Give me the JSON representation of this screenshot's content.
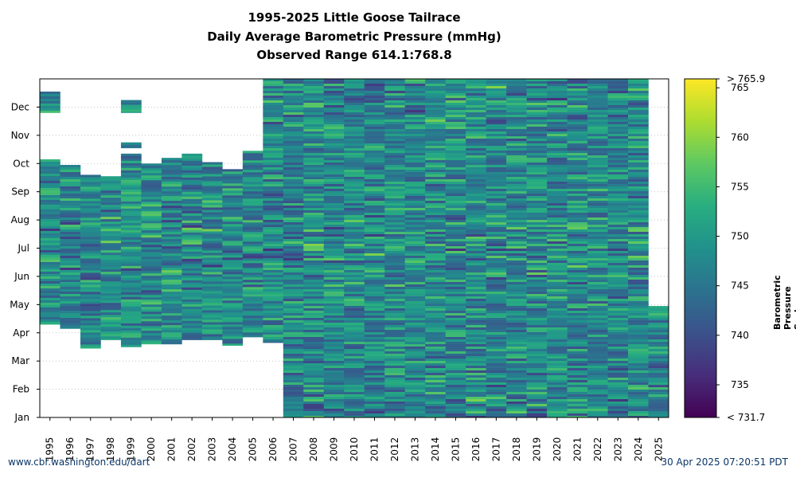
{
  "chart_data": {
    "type": "heatmap",
    "title": "1995-2025 Little Goose Tailrace",
    "subtitle_lines": [
      "Daily Average Barometric Pressure (mmHg)",
      "Observed Range 614.1:768.8"
    ],
    "x_categories": [
      "1995",
      "1996",
      "1997",
      "1998",
      "1999",
      "2000",
      "2001",
      "2002",
      "2003",
      "2004",
      "2005",
      "2006",
      "2007",
      "2008",
      "2009",
      "2010",
      "2011",
      "2012",
      "2013",
      "2014",
      "2015",
      "2016",
      "2017",
      "2018",
      "2019",
      "2020",
      "2021",
      "2022",
      "2023",
      "2024",
      "2025"
    ],
    "y_ticks": [
      "Jan",
      "Feb",
      "Mar",
      "Apr",
      "May",
      "Jun",
      "Jul",
      "Aug",
      "Sep",
      "Oct",
      "Nov",
      "Dec"
    ],
    "grid": true,
    "colorbar": {
      "label": "Barometric Pressure Scale (mmHg)",
      "min": 731.7,
      "max": 765.9,
      "ticks": [
        735,
        740,
        745,
        750,
        755,
        760,
        765
      ],
      "min_label": "< 731.7",
      "max_label": "> 765.9",
      "colormap": "viridis"
    },
    "coverage_months_by_year": [
      {
        "year": "1995",
        "start": 3.3,
        "end": 9.15,
        "extra": [
          [
            10.8,
            11.55
          ]
        ]
      },
      {
        "year": "1996",
        "start": 3.15,
        "end": 8.95
      },
      {
        "year": "1997",
        "start": 2.45,
        "end": 8.6
      },
      {
        "year": "1998",
        "start": 2.75,
        "end": 8.55
      },
      {
        "year": "1999",
        "start": 2.5,
        "end": 9.35,
        "extra": [
          [
            9.55,
            9.75
          ],
          [
            10.8,
            11.25
          ]
        ]
      },
      {
        "year": "2000",
        "start": 2.6,
        "end": 9.0
      },
      {
        "year": "2001",
        "start": 2.6,
        "end": 9.2
      },
      {
        "year": "2002",
        "start": 2.75,
        "end": 9.35
      },
      {
        "year": "2003",
        "start": 2.75,
        "end": 9.05
      },
      {
        "year": "2004",
        "start": 2.55,
        "end": 8.8
      },
      {
        "year": "2005",
        "start": 2.85,
        "end": 9.45
      },
      {
        "year": "2006",
        "start": 2.65,
        "end": 12.0
      },
      {
        "year": "2007",
        "start": 0.0,
        "end": 12.0
      },
      {
        "year": "2008",
        "start": 0.0,
        "end": 12.0
      },
      {
        "year": "2009",
        "start": 0.0,
        "end": 12.0
      },
      {
        "year": "2010",
        "start": 0.0,
        "end": 12.0
      },
      {
        "year": "2011",
        "start": 0.0,
        "end": 12.0
      },
      {
        "year": "2012",
        "start": 0.0,
        "end": 12.0
      },
      {
        "year": "2013",
        "start": 0.0,
        "end": 12.0
      },
      {
        "year": "2014",
        "start": 0.0,
        "end": 12.0
      },
      {
        "year": "2015",
        "start": 0.0,
        "end": 12.0
      },
      {
        "year": "2016",
        "start": 0.0,
        "end": 12.0
      },
      {
        "year": "2017",
        "start": 0.0,
        "end": 12.0
      },
      {
        "year": "2018",
        "start": 0.0,
        "end": 12.0
      },
      {
        "year": "2019",
        "start": 0.0,
        "end": 12.0
      },
      {
        "year": "2020",
        "start": 0.0,
        "end": 12.0
      },
      {
        "year": "2021",
        "start": 0.0,
        "end": 12.0
      },
      {
        "year": "2022",
        "start": 0.0,
        "end": 12.0
      },
      {
        "year": "2023",
        "start": 0.0,
        "end": 12.0
      },
      {
        "year": "2024",
        "start": 0.0,
        "end": 12.0
      },
      {
        "year": "2025",
        "start": 0.0,
        "end": 3.95
      }
    ]
  },
  "footer": {
    "left": "www.cbr.washington.edu/dart",
    "right": "30 Apr 2025 07:20:51 PDT"
  }
}
